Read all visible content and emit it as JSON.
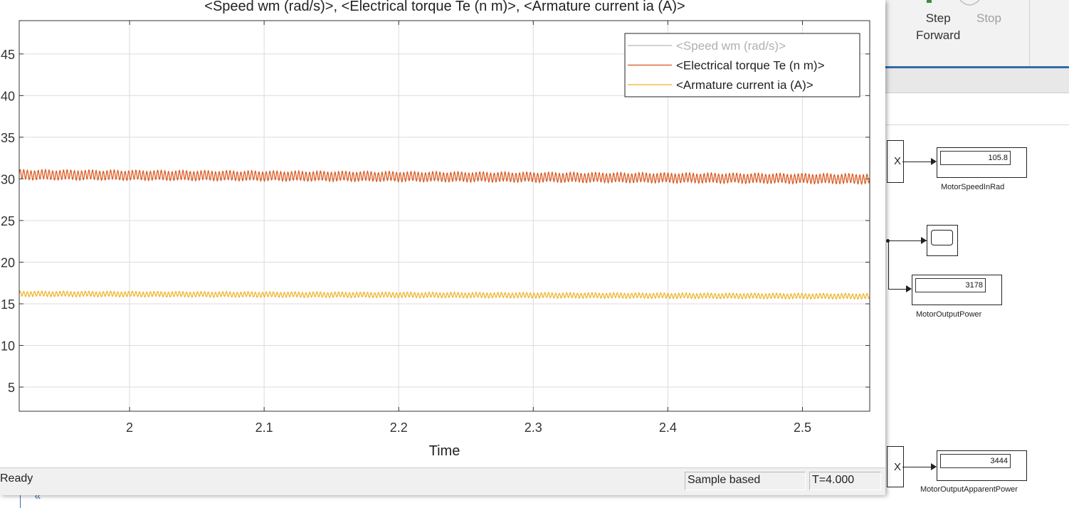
{
  "toolstrip": {
    "step_forward_line1": "Step",
    "step_forward_line2": "Forward",
    "stop_label": "Stop"
  },
  "model": {
    "collapse_label": "«",
    "mux_symbol": "X",
    "blocks": [
      {
        "label": "MotorSpeedInRad",
        "value": "105.8"
      },
      {
        "label": "MotorOutputPower",
        "value": "3178"
      },
      {
        "label": "MotorOutputApparentPower",
        "value": "3444"
      }
    ]
  },
  "scope": {
    "status": "Ready",
    "sample_mode": "Sample based",
    "time_readout": "T=4.000"
  },
  "chart_data": {
    "type": "line",
    "title": "<Speed wm (rad/s)>, <Electrical torque Te (n m)>, <Armature current ia (A)>",
    "xlabel": "Time",
    "ylabel": "",
    "xlim": [
      1.918,
      2.55
    ],
    "ylim": [
      2.1,
      49
    ],
    "xticks": [
      2,
      2.1,
      2.2,
      2.3,
      2.4,
      2.5
    ],
    "xtick_labels": [
      "2",
      "2.1",
      "2.2",
      "2.3",
      "2.4",
      "2.5"
    ],
    "yticks": [
      5,
      10,
      15,
      20,
      25,
      30,
      35,
      40,
      45
    ],
    "ytick_labels": [
      "5",
      "10",
      "15",
      "20",
      "25",
      "30",
      "35",
      "40",
      "45"
    ],
    "grid": true,
    "legend_position": "top-right",
    "series": [
      {
        "name": "<Speed wm (rad/s)>",
        "color": "#b8b8b8",
        "visible": false
      },
      {
        "name": "<Electrical torque Te (n m)>",
        "color": "#d95319",
        "visible": true,
        "mean": [
          30.5,
          30.0
        ],
        "ripple": 0.55,
        "cycles": 235
      },
      {
        "name": "<Armature current ia (A)>",
        "color": "#edb120",
        "visible": true,
        "mean": [
          16.2,
          15.9
        ],
        "ripple": 0.3,
        "cycles": 235
      }
    ]
  }
}
